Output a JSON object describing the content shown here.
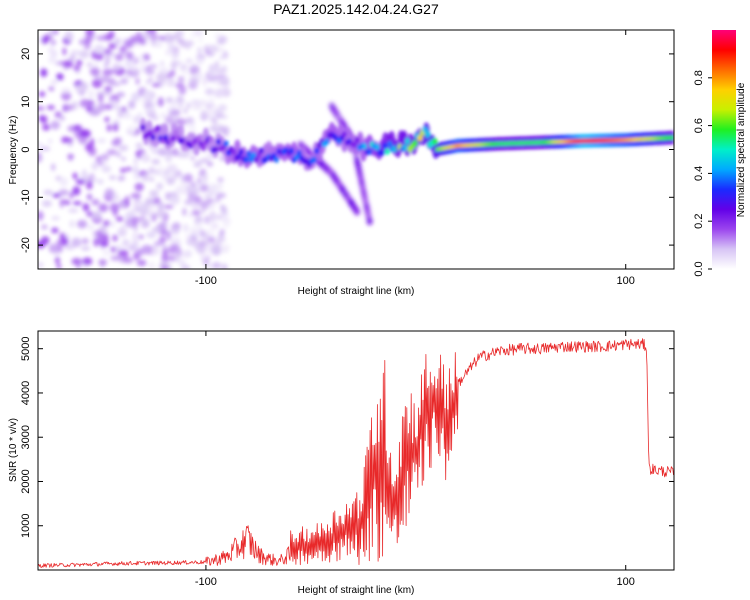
{
  "title": "PAZ1.2025.142.04.24.G27",
  "colors": {
    "snr_line": "#e8292a",
    "colormap": [
      "#ffffff",
      "#d7c4f5",
      "#9b45ee",
      "#6200e8",
      "#1a2bff",
      "#00aaff",
      "#00f0c8",
      "#20f020",
      "#c8f000",
      "#ffd000",
      "#ff6a00",
      "#ff0000",
      "#ff0078"
    ]
  },
  "chart_data": [
    {
      "type": "heatmap",
      "name": "spectrogram",
      "xlabel": "Height of straight line (km)",
      "ylabel": "Frequency (Hz)",
      "xlim": [
        -180,
        123
      ],
      "ylim": [
        -25,
        25
      ],
      "xticks": [
        -100,
        100
      ],
      "xtick_labels": [
        "-100",
        "100"
      ],
      "yticks": [
        -20,
        -10,
        0,
        10,
        20
      ],
      "ytick_labels": [
        "-20",
        "-10",
        "0",
        "10",
        "20"
      ],
      "colorbar": {
        "label": "Normalized spectral amplitude",
        "range": [
          0,
          1
        ],
        "ticks": [
          0.0,
          0.2,
          0.4,
          0.6,
          0.8
        ],
        "tick_labels": [
          "0.0",
          "0.2",
          "0.4",
          "0.6",
          "0.8"
        ]
      },
      "ridge": {
        "x": [
          -130,
          -120,
          -110,
          -100,
          -90,
          -80,
          -70,
          -60,
          -50,
          -40,
          -30,
          -20,
          -10,
          0,
          5,
          10,
          20,
          40,
          60,
          80,
          100,
          123
        ],
        "frequency": [
          4,
          3,
          2,
          1.5,
          0,
          -2,
          -1,
          -1,
          -2,
          4,
          1,
          0,
          1,
          1.5,
          3,
          0,
          0.8,
          1.2,
          1.5,
          1.8,
          2,
          2.5
        ],
        "amplitude": [
          0.2,
          0.25,
          0.2,
          0.2,
          0.3,
          0.35,
          0.3,
          0.35,
          0.3,
          0.35,
          0.3,
          0.4,
          0.5,
          0.55,
          0.6,
          0.6,
          0.8,
          0.55,
          0.55,
          0.95,
          0.8,
          0.55
        ]
      },
      "branches": [
        {
          "x": [
            -55,
            -40,
            -28
          ],
          "frequency": [
            1,
            -5,
            -13
          ],
          "amplitude": 0.2
        },
        {
          "x": [
            -40,
            -30,
            -22
          ],
          "frequency": [
            9,
            2,
            -15
          ],
          "amplitude": 0.18
        }
      ],
      "noise_region": {
        "x": [
          -180,
          -100
        ],
        "frequency": [
          -25,
          25
        ],
        "amplitude_max": 0.2
      }
    },
    {
      "type": "line",
      "name": "snr",
      "xlabel": "Height of straight line (km)",
      "ylabel": "SNR (10 * v/v)",
      "xlim": [
        -180,
        123
      ],
      "ylim": [
        0,
        5400
      ],
      "xticks": [
        -100,
        100
      ],
      "xtick_labels": [
        "-100",
        "100"
      ],
      "yticks": [
        1000,
        2000,
        3000,
        4000,
        5000
      ],
      "ytick_labels": [
        "1000",
        "2000",
        "3000",
        "4000",
        "5000"
      ],
      "x": [
        -180,
        -160,
        -140,
        -120,
        -100,
        -90,
        -85,
        -80,
        -75,
        -70,
        -65,
        -60,
        -55,
        -50,
        -45,
        -40,
        -35,
        -30,
        -25,
        -20,
        -18,
        -15,
        -12,
        -10,
        -8,
        -5,
        -3,
        0,
        3,
        6,
        10,
        15,
        18,
        20,
        25,
        30,
        40,
        50,
        60,
        70,
        80,
        90,
        100,
        105,
        108,
        110,
        111,
        115,
        123
      ],
      "y": [
        100,
        120,
        150,
        160,
        180,
        300,
        500,
        700,
        350,
        250,
        200,
        350,
        600,
        500,
        700,
        900,
        1000,
        1200,
        1100,
        1500,
        700,
        400,
        500,
        1200,
        3200,
        3500,
        2500,
        3700,
        4000,
        3200,
        3900,
        2500,
        3900,
        4200,
        4500,
        4800,
        4950,
        5000,
        5000,
        5050,
        5050,
        5050,
        5100,
        5100,
        5100,
        5050,
        2300,
        2250,
        2200
      ],
      "envelope": {
        "x": [
          -60,
          -45,
          -35,
          -30,
          -25,
          -20,
          -15,
          -10,
          -5,
          0,
          5,
          10,
          15,
          20
        ],
        "y_high": [
          900,
          1100,
          1600,
          1700,
          2200,
          4300,
          4900,
          2500,
          4500,
          4000,
          5050,
          5000,
          4800,
          5000
        ],
        "y_low": [
          100,
          150,
          200,
          150,
          100,
          200,
          100,
          300,
          500,
          1500,
          2000,
          2600,
          1800,
          3200
        ]
      }
    }
  ]
}
